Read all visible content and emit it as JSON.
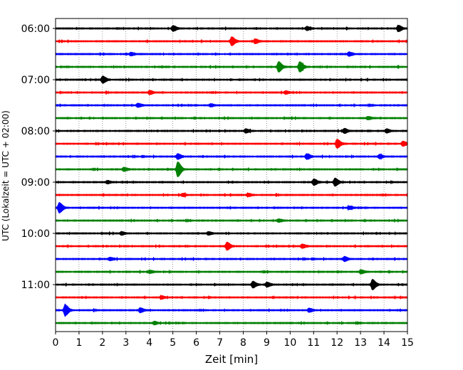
{
  "chart_data": {
    "type": "line",
    "xlabel": "Zeit  [min]",
    "ylabel": "UTC (Lokalzeit = UTC + 02:00)",
    "xlim": [
      0,
      15
    ],
    "x_ticks": [
      0,
      1,
      2,
      3,
      4,
      5,
      6,
      7,
      8,
      9,
      10,
      11,
      12,
      13,
      14,
      15
    ],
    "y_tick_labels": [
      "06:00",
      "07:00",
      "08:00",
      "09:00",
      "10:00",
      "11:00"
    ],
    "grid_x": true,
    "grid_x_style": "dotted",
    "row_minutes": 15,
    "start_time": "06:00",
    "color_cycle": [
      "#000000",
      "#ff0000",
      "#0000ff",
      "#008000"
    ],
    "rows": [
      {
        "start": "06:00",
        "color": "#000000",
        "events": [
          {
            "t": 5.0,
            "amp": 0.6
          },
          {
            "t": 14.6,
            "amp": 0.7
          },
          {
            "t": 10.7,
            "amp": 0.4
          }
        ]
      },
      {
        "start": "06:15",
        "color": "#ff0000",
        "events": [
          {
            "t": 7.5,
            "amp": 1.0
          },
          {
            "t": 8.5,
            "amp": 0.5
          }
        ]
      },
      {
        "start": "06:30",
        "color": "#0000ff",
        "events": [
          {
            "t": 3.2,
            "amp": 0.3
          },
          {
            "t": 12.5,
            "amp": 0.4
          }
        ]
      },
      {
        "start": "06:45",
        "color": "#008000",
        "events": [
          {
            "t": 9.5,
            "amp": 1.2
          },
          {
            "t": 10.4,
            "amp": 1.2
          }
        ]
      },
      {
        "start": "07:00",
        "color": "#000000",
        "events": [
          {
            "t": 2.0,
            "amp": 0.8
          }
        ]
      },
      {
        "start": "07:15",
        "color": "#ff0000",
        "events": [
          {
            "t": 4.0,
            "amp": 0.4
          },
          {
            "t": 9.8,
            "amp": 0.3
          }
        ]
      },
      {
        "start": "07:30",
        "color": "#0000ff",
        "events": [
          {
            "t": 3.5,
            "amp": 0.4
          },
          {
            "t": 6.6,
            "amp": 0.3
          }
        ]
      },
      {
        "start": "07:45",
        "color": "#008000",
        "events": [
          {
            "t": 13.3,
            "amp": 0.3
          }
        ]
      },
      {
        "start": "08:00",
        "color": "#000000",
        "events": [
          {
            "t": 8.1,
            "amp": 0.4
          },
          {
            "t": 12.3,
            "amp": 0.5
          },
          {
            "t": 14.1,
            "amp": 0.4
          }
        ]
      },
      {
        "start": "08:15",
        "color": "#ff0000",
        "events": [
          {
            "t": 12.0,
            "amp": 1.0
          },
          {
            "t": 14.8,
            "amp": 0.5
          }
        ]
      },
      {
        "start": "08:30",
        "color": "#0000ff",
        "events": [
          {
            "t": 5.2,
            "amp": 0.6
          },
          {
            "t": 10.7,
            "amp": 0.6
          },
          {
            "t": 13.8,
            "amp": 0.4
          }
        ]
      },
      {
        "start": "08:45",
        "color": "#008000",
        "events": [
          {
            "t": 5.2,
            "amp": 1.8
          },
          {
            "t": 2.9,
            "amp": 0.4
          }
        ]
      },
      {
        "start": "09:00",
        "color": "#000000",
        "events": [
          {
            "t": 11.0,
            "amp": 0.7
          },
          {
            "t": 11.9,
            "amp": 0.9
          },
          {
            "t": 2.2,
            "amp": 0.3
          }
        ]
      },
      {
        "start": "09:15",
        "color": "#ff0000",
        "events": [
          {
            "t": 8.2,
            "amp": 0.3
          },
          {
            "t": 5.4,
            "amp": 0.3
          }
        ]
      },
      {
        "start": "09:30",
        "color": "#0000ff",
        "events": [
          {
            "t": 0.15,
            "amp": 1.2
          },
          {
            "t": 12.5,
            "amp": 0.3
          }
        ]
      },
      {
        "start": "09:45",
        "color": "#008000",
        "events": [
          {
            "t": 9.5,
            "amp": 0.3
          }
        ]
      },
      {
        "start": "10:00",
        "color": "#000000",
        "events": [
          {
            "t": 2.8,
            "amp": 0.3
          },
          {
            "t": 6.5,
            "amp": 0.3
          }
        ]
      },
      {
        "start": "10:15",
        "color": "#ff0000",
        "events": [
          {
            "t": 7.3,
            "amp": 0.9
          },
          {
            "t": 10.5,
            "amp": 0.4
          }
        ]
      },
      {
        "start": "10:30",
        "color": "#0000ff",
        "events": [
          {
            "t": 12.3,
            "amp": 0.5
          },
          {
            "t": 2.3,
            "amp": 0.3
          }
        ]
      },
      {
        "start": "10:45",
        "color": "#008000",
        "events": [
          {
            "t": 13.0,
            "amp": 0.4
          },
          {
            "t": 4.0,
            "amp": 0.3
          }
        ]
      },
      {
        "start": "11:00",
        "color": "#000000",
        "events": [
          {
            "t": 8.4,
            "amp": 0.7
          },
          {
            "t": 9.0,
            "amp": 0.5
          },
          {
            "t": 13.5,
            "amp": 1.2
          }
        ]
      },
      {
        "start": "11:15",
        "color": "#ff0000",
        "events": [
          {
            "t": 4.5,
            "amp": 0.3
          }
        ]
      },
      {
        "start": "11:30",
        "color": "#0000ff",
        "events": [
          {
            "t": 0.4,
            "amp": 1.3
          },
          {
            "t": 3.6,
            "amp": 0.5
          },
          {
            "t": 10.8,
            "amp": 0.4
          }
        ]
      },
      {
        "start": "11:45",
        "color": "#008000",
        "events": [
          {
            "t": 4.2,
            "amp": 0.3
          }
        ]
      }
    ]
  }
}
